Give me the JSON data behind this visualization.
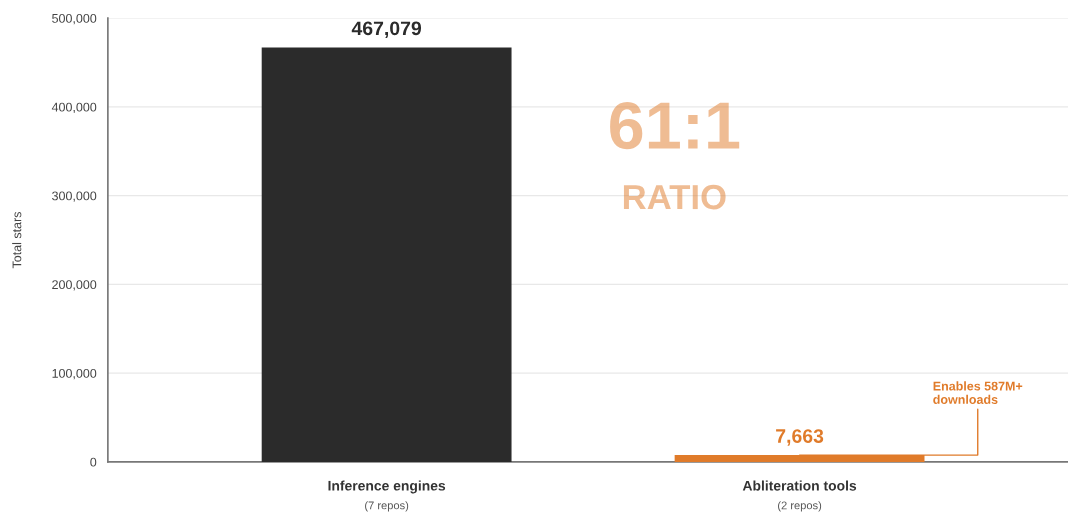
{
  "chart_data": {
    "type": "bar",
    "ylabel": "Total stars",
    "categories": [
      "Inference engines\n(7 repos)",
      "Abliteration tools\n(2 repos)"
    ],
    "values": [
      467079,
      7663
    ],
    "colors": [
      "#2b2b2b",
      "#e07b2a"
    ],
    "ylim": [
      0,
      500000
    ],
    "yticks": [
      {
        "value": 0,
        "label": "0"
      },
      {
        "value": 100000,
        "label": "100,000"
      },
      {
        "value": 200000,
        "label": "200,000"
      },
      {
        "value": 300000,
        "label": "300,000"
      },
      {
        "value": 400000,
        "label": "400,000"
      },
      {
        "value": 500000,
        "label": "500,000"
      }
    ],
    "value_labels": [
      "467,079",
      "7,663"
    ],
    "grid": "y",
    "annotations": [
      "61:1",
      "RATIO",
      {
        "text": "Enables 587M+\ndownloads",
        "x": "Abliteration tools\n(2 repos)",
        "y": 7663
      }
    ]
  }
}
